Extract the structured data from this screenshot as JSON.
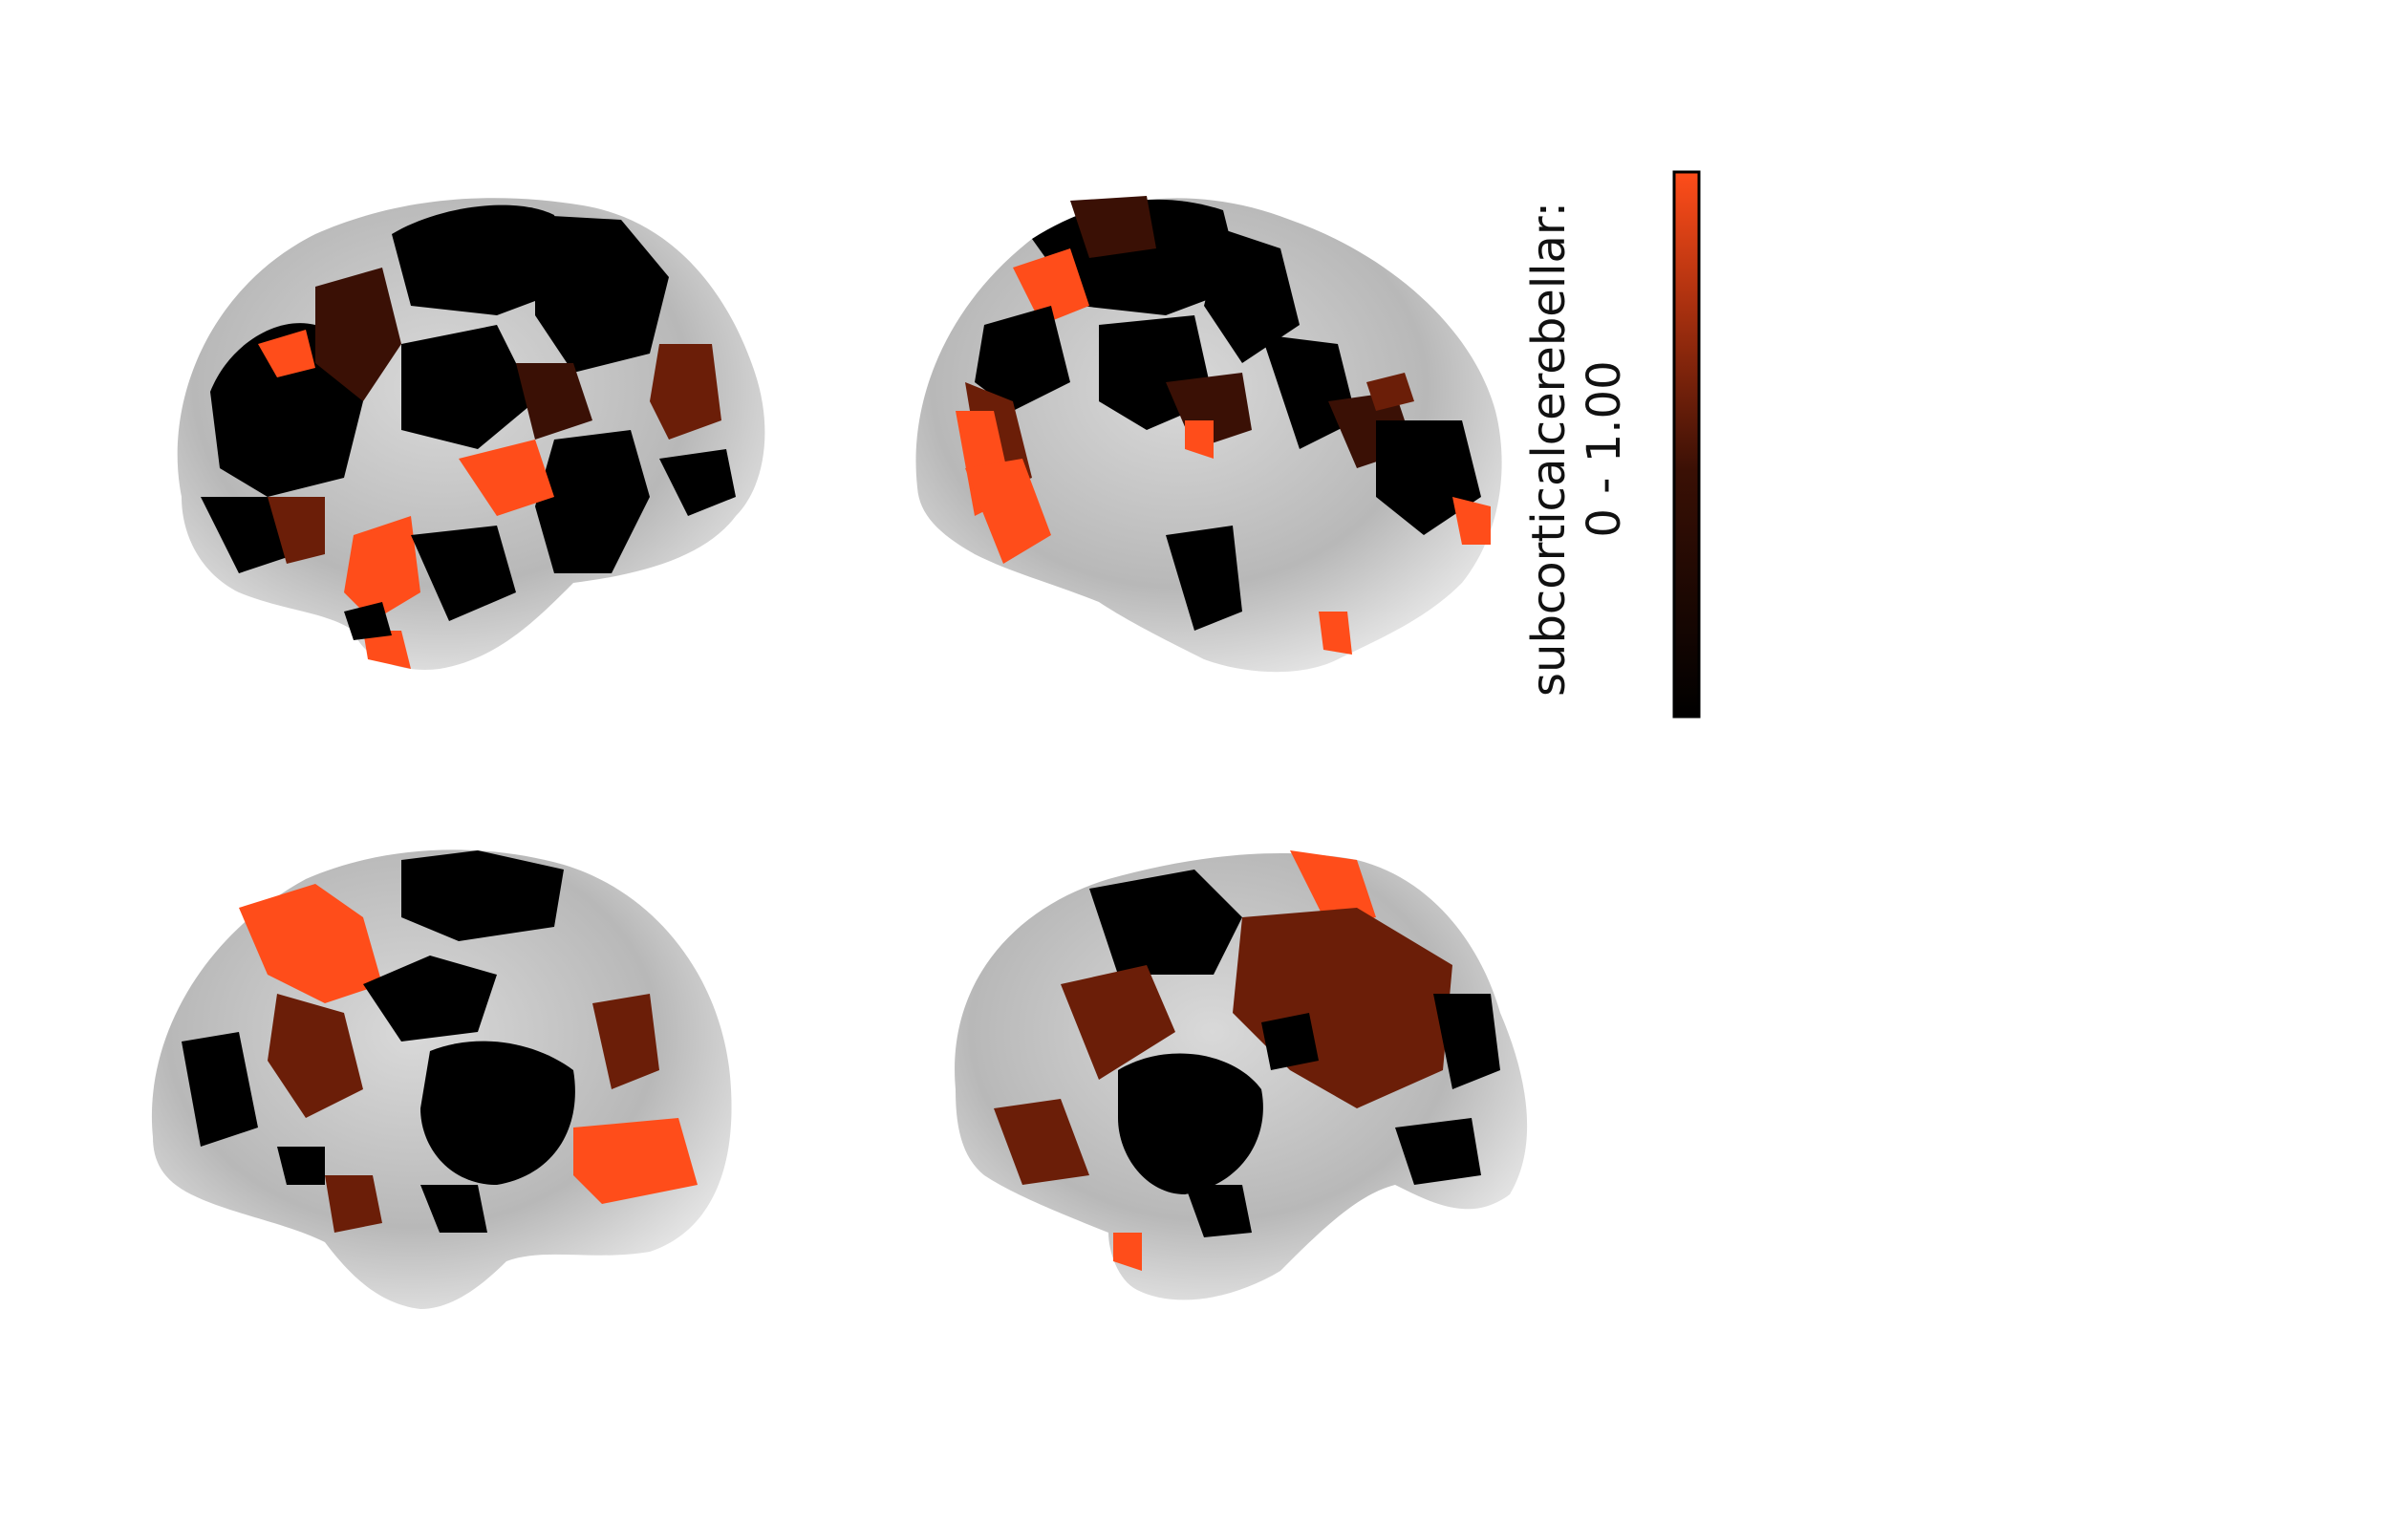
{
  "colorbar": {
    "label": "subcorticalcerebellar:",
    "range": "0 - 1.00",
    "min": 0,
    "max": 1.0,
    "colors": {
      "low": "#000000",
      "mid": "#6b1e08",
      "high": "#ff4d1a"
    }
  },
  "colors": {
    "cortex_gray": "#bdbdbd",
    "cortex_dark_gray": "#8c8c8c",
    "background": "#ffffff"
  },
  "views": [
    {
      "view": "lateral",
      "hemisphere": "left"
    },
    {
      "view": "lateral",
      "hemisphere": "right"
    },
    {
      "view": "medial",
      "hemisphere": "left"
    },
    {
      "view": "medial",
      "hemisphere": "right"
    }
  ]
}
